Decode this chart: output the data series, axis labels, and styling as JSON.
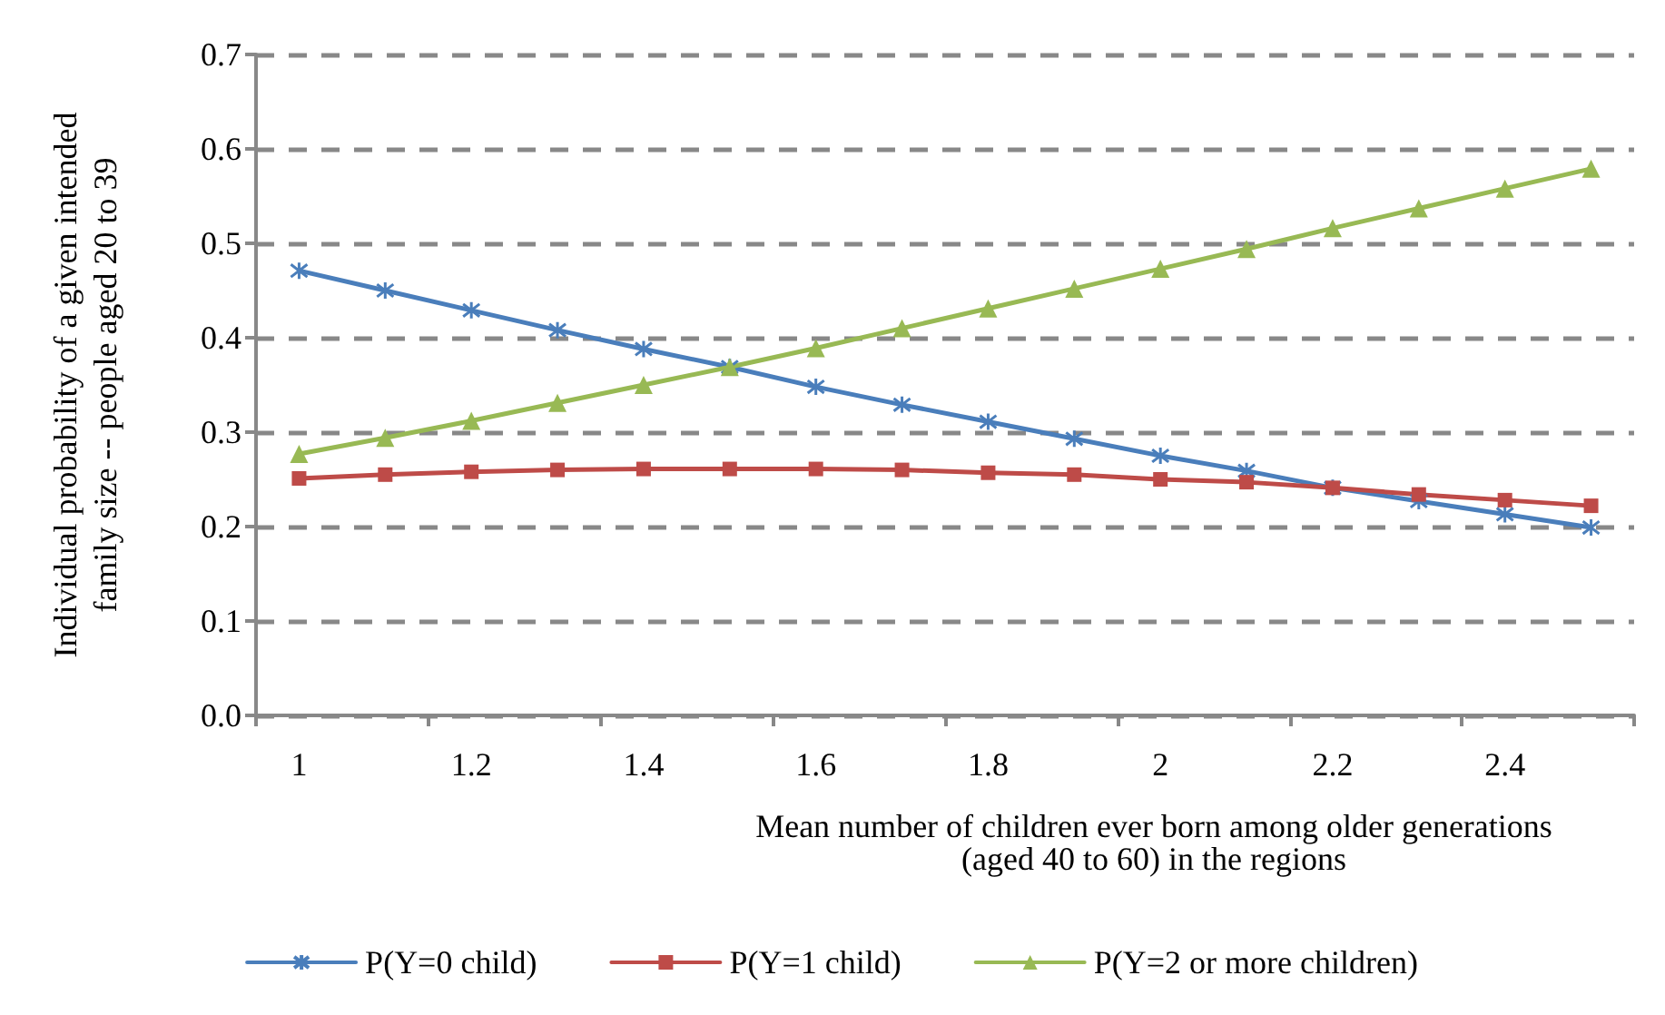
{
  "chart_data": {
    "type": "line",
    "xlabel": "Mean number of children ever born among older generations\n(aged 40 to 60) in the regions",
    "ylabel": "Individual probability of a given intended\nfamily size -- people aged 20 to 39",
    "categories": [
      "1",
      null,
      "1.2",
      null,
      "1.4",
      null,
      "1.6",
      null,
      "1.8",
      null,
      "2",
      null,
      "2.2",
      null,
      "2.4",
      null
    ],
    "series": [
      {
        "name": "P(Y=0 child)",
        "color": "#4a7ebb",
        "marker": "cross",
        "values": [
          0.471,
          0.45,
          0.429,
          0.408,
          0.388,
          0.369,
          0.348,
          0.329,
          0.311,
          0.293,
          0.275,
          0.259,
          0.241,
          0.227,
          0.213,
          0.199
        ]
      },
      {
        "name": "P(Y=1 child)",
        "color": "#be4b48",
        "marker": "square",
        "values": [
          0.251,
          0.255,
          0.258,
          0.26,
          0.261,
          0.261,
          0.261,
          0.26,
          0.257,
          0.255,
          0.25,
          0.247,
          0.241,
          0.234,
          0.228,
          0.222
        ]
      },
      {
        "name": "P(Y=2 or more children)",
        "color": "#98b954",
        "marker": "triangle",
        "values": [
          0.277,
          0.294,
          0.312,
          0.331,
          0.35,
          0.369,
          0.389,
          0.41,
          0.431,
          0.452,
          0.473,
          0.494,
          0.516,
          0.537,
          0.558,
          0.579
        ]
      }
    ],
    "ylim": [
      0,
      0.7
    ],
    "yticks": [
      {
        "value": 0,
        "label": "0.0"
      },
      0.1,
      0.2,
      0.3,
      0.4,
      0.5,
      0.6,
      0.7
    ],
    "grid": "y",
    "legend": "bottom",
    "line_style": "solid"
  }
}
